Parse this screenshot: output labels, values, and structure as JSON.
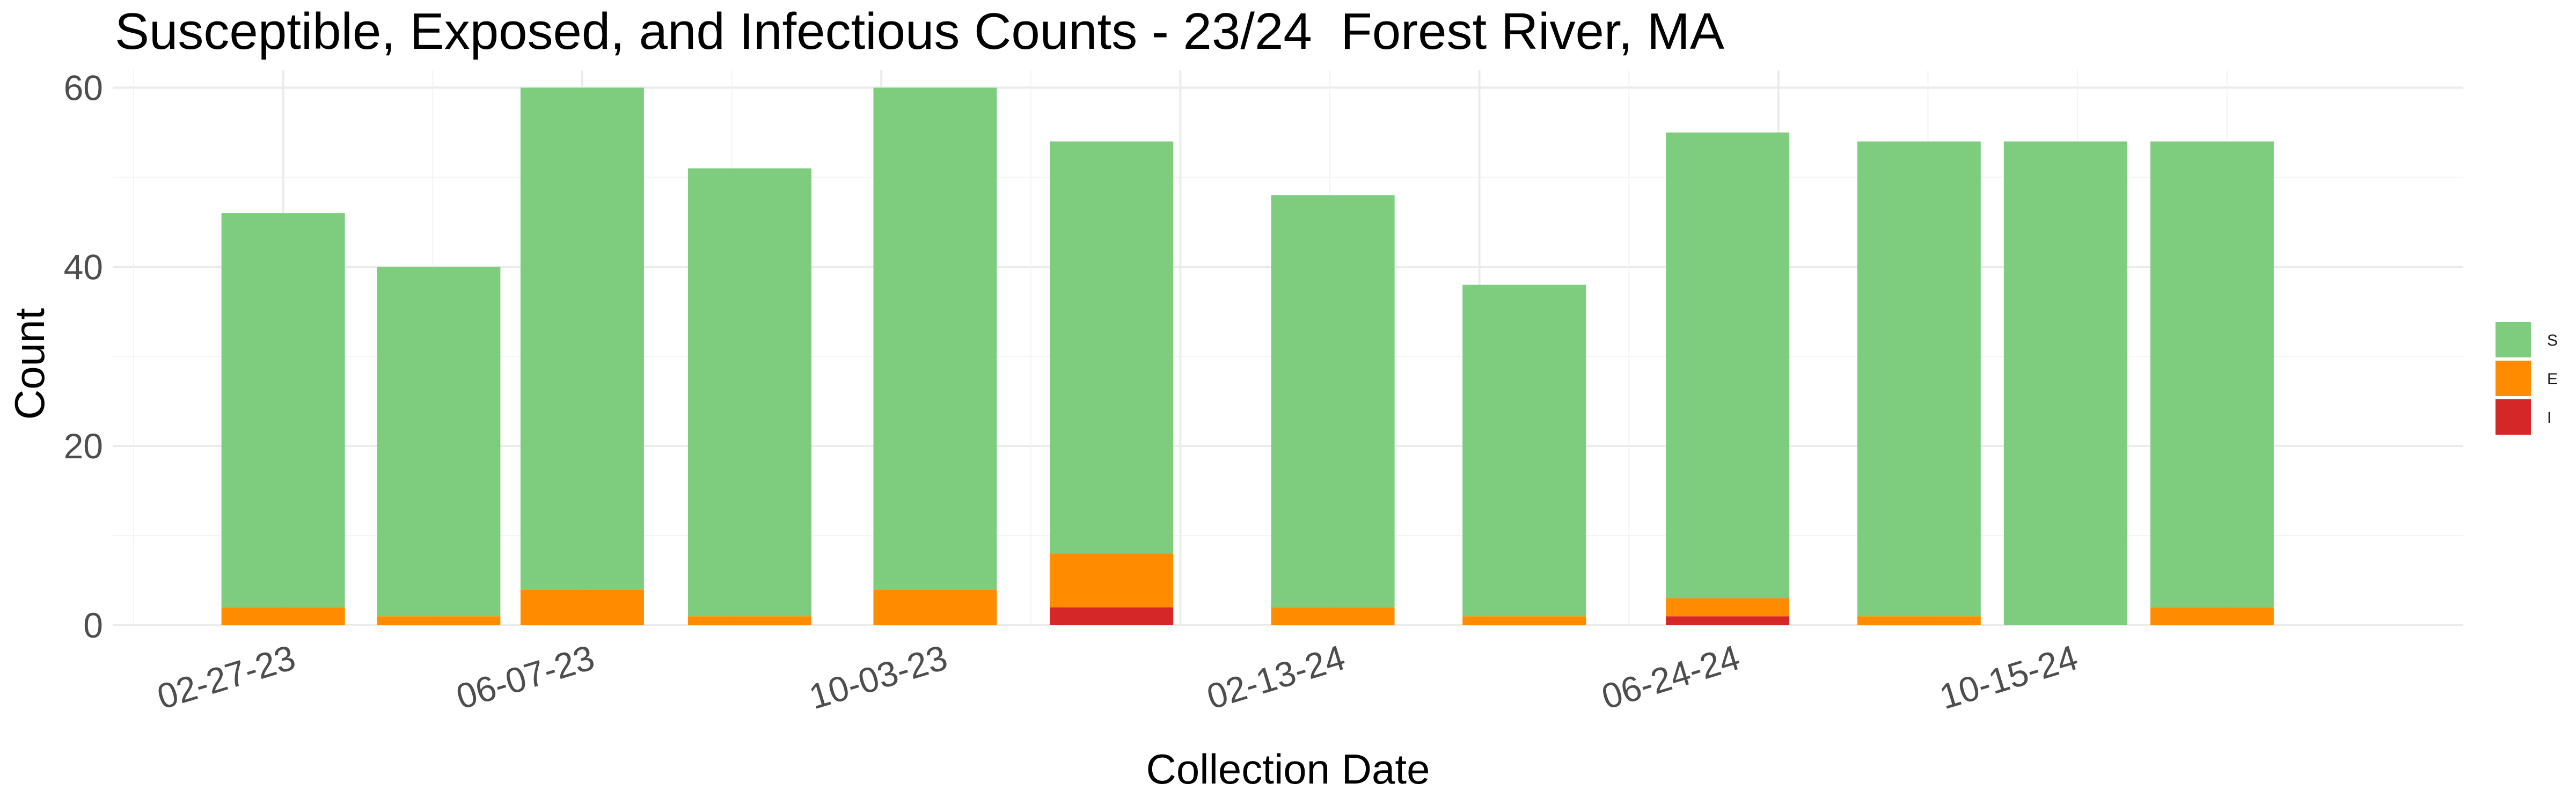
{
  "chart_data": {
    "type": "bar",
    "stacked": true,
    "title": "Susceptible, Exposed, and Infectious Counts - 23/24  Forest River, MA",
    "xlabel": "Collection Date",
    "ylabel": "Count",
    "ylim": [
      0,
      62
    ],
    "yticks": [
      0,
      20,
      40,
      60
    ],
    "grid": true,
    "legend_position": "right",
    "x_dates": [
      "2023-02-27",
      "2023-04-20",
      "2023-06-07",
      "2023-08-02",
      "2023-10-03",
      "2023-12-01",
      "2024-02-13",
      "2024-04-17",
      "2024-06-24",
      "2024-08-27",
      "2024-10-15",
      "2024-12-03"
    ],
    "xticks": [
      "2023-02-27",
      "2023-06-07",
      "2023-10-03",
      "2024-02-13",
      "2024-06-24",
      "2024-10-15"
    ],
    "xtick_labels": [
      "02-27-23",
      "06-07-23",
      "10-03-23",
      "02-13-24",
      "06-24-24",
      "10-15-24"
    ],
    "series": [
      {
        "name": "I",
        "color": "#d62728",
        "values": [
          0,
          0,
          0,
          0,
          0,
          2,
          0,
          0,
          1,
          0,
          0,
          0
        ]
      },
      {
        "name": "E",
        "color": "#ff8c00",
        "values": [
          2,
          1,
          4,
          1,
          4,
          6,
          2,
          1,
          2,
          1,
          0,
          2
        ]
      },
      {
        "name": "S",
        "color": "#7ecd7e",
        "values": [
          44,
          39,
          56,
          50,
          56,
          46,
          46,
          37,
          52,
          53,
          54,
          52
        ]
      }
    ],
    "legend_order": [
      "S",
      "E",
      "I"
    ]
  }
}
